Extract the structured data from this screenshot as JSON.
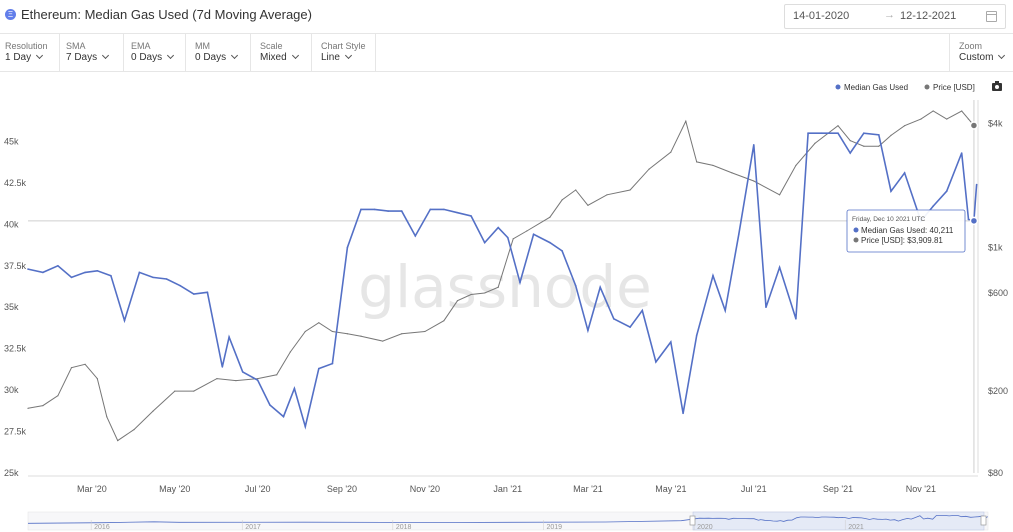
{
  "header": {
    "icon": "ethereum-icon",
    "title": "Ethereum: Median Gas Used (7d Moving Average)",
    "date_from": "14-01-2020",
    "date_arrow": "→",
    "date_to": "12-12-2021"
  },
  "controls": [
    {
      "label": "Resolution",
      "value": "1 Day"
    },
    {
      "label": "SMA",
      "value": "7 Days"
    },
    {
      "label": "EMA",
      "value": "0 Days"
    },
    {
      "label": "MM",
      "value": "0 Days"
    },
    {
      "label": "Scale",
      "value": "Mixed"
    },
    {
      "label": "Chart Style",
      "value": "Line"
    }
  ],
  "zoom": {
    "label": "Zoom",
    "value": "Custom"
  },
  "legend": {
    "items": [
      {
        "name": "Median Gas Used",
        "color": "#5470c6"
      },
      {
        "name": "Price [USD]",
        "color": "#777777"
      }
    ],
    "camera_icon": "camera-icon"
  },
  "watermark": "glassnode",
  "tooltip": {
    "date": "Friday, Dec 10 2021 UTC",
    "rows": [
      {
        "label": "Median Gas Used:",
        "value": "40,211",
        "color": "#5470c6"
      },
      {
        "label": "Price [USD]:",
        "value": "$3,909.81",
        "color": "#777777"
      }
    ]
  },
  "chart_data": {
    "type": "line",
    "x_ticks": [
      "Mar '20",
      "May '20",
      "Jul '20",
      "Sep '20",
      "Nov '20",
      "Jan '21",
      "Mar '21",
      "May '21",
      "Jul '21",
      "Sep '21",
      "Nov '21"
    ],
    "y_left": {
      "ticks": [
        "25k",
        "27.5k",
        "30k",
        "32.5k",
        "35k",
        "37.5k",
        "40k",
        "42.5k",
        "45k"
      ],
      "ylim": [
        25000,
        47500
      ]
    },
    "y_right": {
      "scale": "log",
      "ticks": [
        "$80",
        "$200",
        "$600",
        "$1k",
        "$4k"
      ],
      "ylim": [
        80,
        5200
      ]
    },
    "grid": false,
    "legend_position": "top-right",
    "series": [
      {
        "name": "Median Gas Used",
        "axis": "left",
        "color": "#5470c6",
        "x": [
          "2020-01-14",
          "2020-01-25",
          "2020-02-05",
          "2020-02-15",
          "2020-02-25",
          "2020-03-05",
          "2020-03-15",
          "2020-03-25",
          "2020-04-05",
          "2020-04-15",
          "2020-04-25",
          "2020-05-05",
          "2020-05-15",
          "2020-05-25",
          "2020-06-05",
          "2020-06-10",
          "2020-06-20",
          "2020-07-01",
          "2020-07-10",
          "2020-07-20",
          "2020-07-28",
          "2020-08-05",
          "2020-08-15",
          "2020-08-25",
          "2020-09-05",
          "2020-09-15",
          "2020-09-25",
          "2020-10-05",
          "2020-10-15",
          "2020-10-25",
          "2020-11-05",
          "2020-11-15",
          "2020-11-25",
          "2020-12-05",
          "2020-12-15",
          "2020-12-25",
          "2021-01-01",
          "2021-01-10",
          "2021-01-20",
          "2021-02-01",
          "2021-02-10",
          "2021-02-20",
          "2021-03-01",
          "2021-03-10",
          "2021-03-20",
          "2021-04-01",
          "2021-04-10",
          "2021-04-20",
          "2021-05-01",
          "2021-05-10",
          "2021-05-20",
          "2021-06-01",
          "2021-06-10",
          "2021-06-20",
          "2021-07-01",
          "2021-07-10",
          "2021-07-20",
          "2021-08-01",
          "2021-08-10",
          "2021-08-20",
          "2021-09-01",
          "2021-09-10",
          "2021-09-20",
          "2021-10-01",
          "2021-10-10",
          "2021-10-20",
          "2021-11-01",
          "2021-11-10",
          "2021-11-20",
          "2021-12-01",
          "2021-12-06",
          "2021-12-10",
          "2021-12-12"
        ],
        "values": [
          37300,
          37100,
          37500,
          36800,
          37100,
          37200,
          36900,
          34200,
          37100,
          36800,
          36700,
          36300,
          35800,
          35900,
          31400,
          33200,
          31100,
          30600,
          29100,
          28400,
          30100,
          27800,
          31300,
          31600,
          38600,
          40900,
          40900,
          40800,
          40800,
          39300,
          40900,
          40900,
          40700,
          40500,
          38900,
          39800,
          39200,
          36500,
          39400,
          38900,
          38400,
          36300,
          33600,
          36200,
          34300,
          33800,
          34800,
          31700,
          32900,
          28600,
          33300,
          36900,
          34800,
          39400,
          44800,
          35000,
          37400,
          34300,
          45500,
          45500,
          45500,
          44300,
          45500,
          45400,
          42000,
          43100,
          40200,
          41100,
          42000,
          44300,
          40300,
          40211,
          42400
        ]
      },
      {
        "name": "Price [USD]",
        "axis": "right",
        "color": "#777777",
        "x": [
          "2020-01-14",
          "2020-01-25",
          "2020-02-05",
          "2020-02-15",
          "2020-02-25",
          "2020-03-05",
          "2020-03-12",
          "2020-03-20",
          "2020-04-01",
          "2020-04-15",
          "2020-05-01",
          "2020-05-15",
          "2020-06-01",
          "2020-06-15",
          "2020-07-01",
          "2020-07-15",
          "2020-07-25",
          "2020-08-05",
          "2020-08-15",
          "2020-08-25",
          "2020-09-05",
          "2020-09-15",
          "2020-10-01",
          "2020-10-15",
          "2020-11-01",
          "2020-11-15",
          "2020-11-25",
          "2020-12-05",
          "2020-12-15",
          "2020-12-25",
          "2021-01-05",
          "2021-01-15",
          "2021-02-01",
          "2021-02-10",
          "2021-02-20",
          "2021-03-01",
          "2021-03-15",
          "2021-04-01",
          "2021-04-15",
          "2021-05-01",
          "2021-05-12",
          "2021-05-20",
          "2021-06-01",
          "2021-06-15",
          "2021-07-01",
          "2021-07-20",
          "2021-08-01",
          "2021-08-15",
          "2021-09-01",
          "2021-09-10",
          "2021-09-20",
          "2021-10-01",
          "2021-10-10",
          "2021-10-20",
          "2021-11-01",
          "2021-11-10",
          "2021-11-20",
          "2021-12-01",
          "2021-12-06",
          "2021-12-10",
          "2021-12-12"
        ],
        "values": [
          165,
          170,
          190,
          260,
          270,
          230,
          150,
          115,
          130,
          160,
          200,
          200,
          230,
          225,
          230,
          240,
          310,
          390,
          430,
          390,
          380,
          370,
          350,
          380,
          390,
          440,
          550,
          590,
          600,
          640,
          1100,
          1200,
          1400,
          1700,
          1900,
          1600,
          1800,
          1900,
          2400,
          2900,
          4100,
          2600,
          2500,
          2300,
          2100,
          1800,
          2500,
          3200,
          3900,
          3300,
          3100,
          3100,
          3500,
          3900,
          4200,
          4600,
          4200,
          4600,
          4200,
          3909.81,
          4000
        ]
      }
    ],
    "navigator_ticks": [
      "2016",
      "2017",
      "2018",
      "2019",
      "2020",
      "2021"
    ]
  }
}
